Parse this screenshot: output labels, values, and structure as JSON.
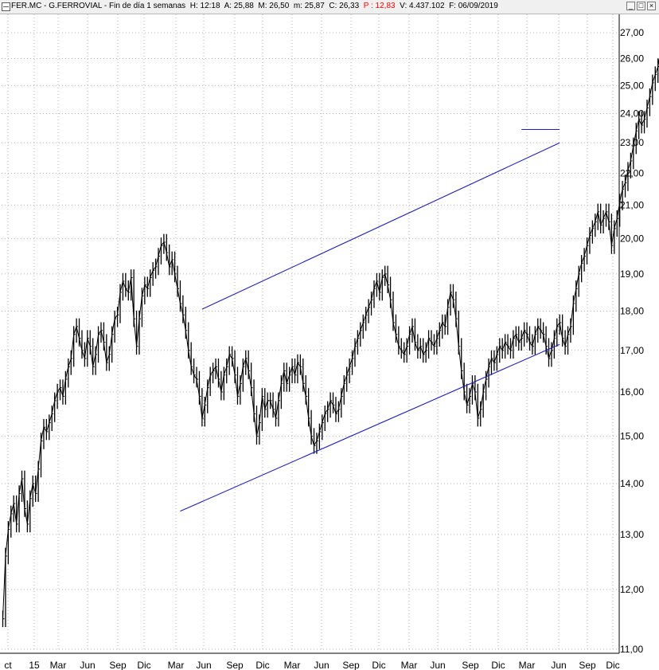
{
  "header": {
    "ticker": "FER.MC",
    "name": "G.FERROVIAL",
    "period": "Fin de día 1 semanas",
    "time": "H: 12:18",
    "open": "A: 25,88",
    "high": "M: 26,50",
    "low": "m: 25,87",
    "close": "C: 26,33",
    "pct": "P : 12,83",
    "volume": "V: 4.437.102",
    "date": "F: 06/09/2019",
    "sep": " - "
  },
  "window_buttons": {
    "minimize": "_",
    "maximize": "□",
    "close": "×"
  },
  "colors": {
    "price": "#000000",
    "trendlines": "#1f1fb4",
    "grid": "#b4b4b4",
    "pct_text": "#ff0000"
  },
  "chart_data": {
    "type": "line",
    "scale": "log",
    "grid": true,
    "ylim": [
      11,
      27.6
    ],
    "y_ticks": [
      "27,00",
      "26,00",
      "25,00",
      "24,00",
      "23,00",
      "22,00",
      "21,00",
      "20,00",
      "19,00",
      "18,00",
      "17,00",
      "16,00",
      "15,00",
      "14,00",
      "13,00",
      "12,00",
      "11,00"
    ],
    "x_ticks": [
      "ct",
      "15",
      "Mar",
      "Jun",
      "Sep",
      "Dic",
      "Mar",
      "Jun",
      "Sep",
      "Dic",
      "Mar",
      "Jun",
      "Sep",
      "Dic",
      "Mar",
      "Jun",
      "Sep",
      "Dic",
      "Mar",
      "Jun",
      "Sep",
      "Dic"
    ],
    "series": [
      {
        "values": [
          11.5,
          12.6,
          13.1,
          13.4,
          13.6,
          13.2,
          13.8,
          14.1,
          13.5,
          13.2,
          13.7,
          14.0,
          13.8,
          14.3,
          14.9,
          15.2,
          15.1,
          15.3,
          15.5,
          15.8,
          16.0,
          16.1,
          15.9,
          16.3,
          16.6,
          16.8,
          17.4,
          17.6,
          17.3,
          17.0,
          16.8,
          17.3,
          17.1,
          16.6,
          16.9,
          17.4,
          17.5,
          17.2,
          16.7,
          16.9,
          17.4,
          17.8,
          17.9,
          18.5,
          18.8,
          18.6,
          18.5,
          18.9,
          17.8,
          17.1,
          17.8,
          18.4,
          18.7,
          18.6,
          18.9,
          19.1,
          19.2,
          19.5,
          19.8,
          19.9,
          19.6,
          19.2,
          19.4,
          19.0,
          18.6,
          18.2,
          17.9,
          17.5,
          17.0,
          16.6,
          16.4,
          16.3,
          15.9,
          15.4,
          15.7,
          16.1,
          16.4,
          16.5,
          16.6,
          16.3,
          16.0,
          16.4,
          16.6,
          16.9,
          16.8,
          16.4,
          15.9,
          16.2,
          16.6,
          16.8,
          16.5,
          16.1,
          15.5,
          15.0,
          15.3,
          15.9,
          15.6,
          15.8,
          15.8,
          15.6,
          15.4,
          15.8,
          16.2,
          16.5,
          16.2,
          16.4,
          16.6,
          16.4,
          16.7,
          16.6,
          16.2,
          15.9,
          15.4,
          15.0,
          14.8,
          14.9,
          15.1,
          15.3,
          15.5,
          15.6,
          15.8,
          15.7,
          15.5,
          15.6,
          15.9,
          16.2,
          16.4,
          16.6,
          16.8,
          17.1,
          17.3,
          17.5,
          17.7,
          17.9,
          18.1,
          18.3,
          18.6,
          18.8,
          18.5,
          18.9,
          19.0,
          18.7,
          18.3,
          17.7,
          17.4,
          17.1,
          17.0,
          16.9,
          17.1,
          17.4,
          17.6,
          17.2,
          17.0,
          17.1,
          16.9,
          17.0,
          17.3,
          17.2,
          17.1,
          17.3,
          17.5,
          17.7,
          17.6,
          18.1,
          18.5,
          18.3,
          17.8,
          17.1,
          16.5,
          16.0,
          15.7,
          15.9,
          16.2,
          16.0,
          15.4,
          15.6,
          16.0,
          16.3,
          16.6,
          16.8,
          16.7,
          16.9,
          17.1,
          17.0,
          17.2,
          17.1,
          17.0,
          17.3,
          17.4,
          17.2,
          17.3,
          17.5,
          17.4,
          17.2,
          17.1,
          17.4,
          17.6,
          17.5,
          17.4,
          17.1,
          16.8,
          17.0,
          17.3,
          17.6,
          17.7,
          17.3,
          17.1,
          17.4,
          17.6,
          18.2,
          18.6,
          19.0,
          19.3,
          19.5,
          19.8,
          20.1,
          20.3,
          20.5,
          20.8,
          20.4,
          20.6,
          20.8,
          20.5,
          19.8,
          20.3,
          20.6,
          21.1,
          21.5,
          21.7,
          22.1,
          22.4,
          22.9,
          23.4,
          23.8,
          23.6,
          23.8,
          24.2,
          24.6,
          25.1,
          25.4,
          25.7,
          26.33
        ]
      }
    ],
    "trendlines": [
      {
        "from": {
          "bar": 73,
          "value": 18.05
        },
        "to": {
          "bar": 204,
          "value": 23.0
        }
      },
      {
        "from": {
          "bar": 65,
          "value": 13.45
        },
        "to": {
          "bar": 204,
          "value": 17.15
        }
      },
      {
        "from": {
          "bar": 190,
          "value": 23.45
        },
        "to": {
          "bar": 204,
          "value": 23.45
        }
      }
    ]
  }
}
